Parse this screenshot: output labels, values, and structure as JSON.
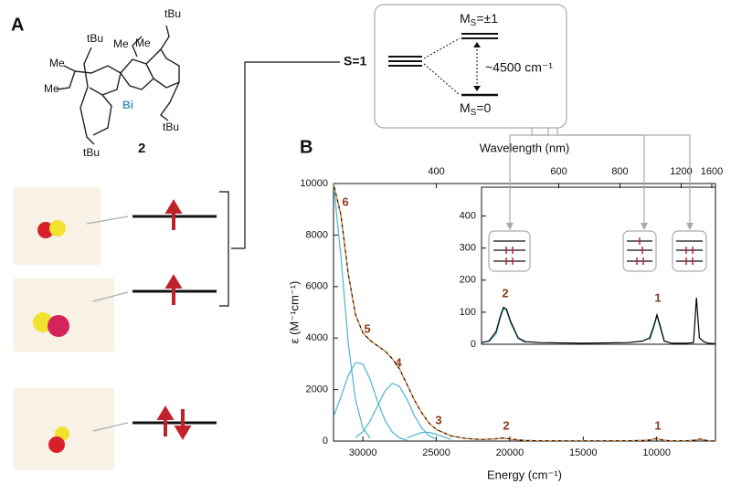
{
  "panel_a": {
    "label": "A",
    "compound": "2",
    "bi": "Bi",
    "me": [
      "Me",
      "Me",
      "Me",
      "Me"
    ],
    "tbu": [
      "tBu",
      "tBu",
      "tBu",
      "tBu"
    ],
    "spin": "S=1",
    "levels": {
      "upper": {
        "m": "M",
        "sub": "S",
        "rest": "=±1"
      },
      "gap": "~4500 cm⁻¹",
      "lower": {
        "m": "M",
        "sub": "S",
        "rest": "=0"
      }
    }
  },
  "panel_b_label": "B",
  "chart_data": [
    {
      "type": "line",
      "xlabel": "Energy (cm⁻¹)",
      "ylabel": "ε (M⁻¹cm⁻¹)",
      "x2label": "Wavelength (nm)",
      "x": [
        32000,
        31500,
        31000,
        30500,
        30000,
        29500,
        29000,
        28500,
        28000,
        27500,
        27000,
        26500,
        26000,
        25500,
        25000,
        24000,
        23000,
        22000,
        21000,
        20500,
        20000,
        19000,
        18000,
        15000,
        12000,
        11000,
        10500,
        10000,
        9500,
        9000,
        8000,
        7500,
        7000,
        6500,
        6000
      ],
      "series": [
        {
          "color": "#4bb3cf",
          "style": "solid",
          "values": [
            10000,
            7200,
            3800,
            1600,
            500,
            120,
            null,
            null,
            null,
            null,
            null,
            null,
            null,
            null,
            null,
            null,
            null,
            null,
            null,
            null,
            null,
            null,
            null,
            null,
            null,
            null,
            null,
            null,
            null,
            null,
            null,
            null,
            null,
            null,
            null
          ]
        },
        {
          "color": "#4bb3cf",
          "style": "solid",
          "values": [
            940,
            1710,
            2540,
            3050,
            2990,
            2380,
            1540,
            810,
            350,
            120,
            35,
            null,
            null,
            null,
            null,
            null,
            null,
            null,
            null,
            null,
            null,
            null,
            null,
            null,
            null,
            null,
            null,
            null,
            null,
            null,
            null,
            null,
            null,
            null,
            null
          ]
        },
        {
          "color": "#4bb3cf",
          "style": "solid",
          "values": [
            null,
            null,
            null,
            140,
            365,
            780,
            1370,
            1940,
            2245,
            2120,
            1620,
            1000,
            510,
            210,
            70,
            null,
            null,
            null,
            null,
            null,
            null,
            null,
            null,
            null,
            null,
            null,
            null,
            null,
            null,
            null,
            null,
            null,
            null,
            null,
            null
          ]
        },
        {
          "color": "#4bb3cf",
          "style": "solid",
          "values": [
            null,
            null,
            null,
            null,
            null,
            null,
            null,
            null,
            null,
            null,
            123,
            235,
            330,
            340,
            260,
            60,
            null,
            null,
            null,
            null,
            null,
            null,
            null,
            null,
            null,
            null,
            null,
            null,
            null,
            null,
            null,
            null,
            null,
            null,
            null
          ]
        },
        {
          "color": "#000000",
          "style": "solid",
          "values": [
            10000,
            8800,
            6500,
            4900,
            4200,
            3900,
            3700,
            3500,
            3200,
            2800,
            2200,
            1600,
            1100,
            700,
            450,
            200,
            100,
            60,
            80,
            120,
            80,
            20,
            10,
            5,
            10,
            20,
            40,
            100,
            30,
            10,
            10,
            30,
            80,
            10,
            5
          ]
        },
        {
          "color": "#e8943a",
          "style": "dashed",
          "values": [
            10000,
            8750,
            6480,
            4920,
            4190,
            3880,
            3710,
            3490,
            3200,
            2790,
            2210,
            1600,
            1100,
            700,
            440,
            200,
            100,
            60,
            80,
            115,
            80,
            20,
            10,
            5,
            10,
            20,
            40,
            95,
            30,
            10,
            10,
            30,
            70,
            10,
            5
          ]
        }
      ],
      "xlim": [
        32000,
        6000
      ],
      "xticks": [
        30000,
        25000,
        20000,
        15000,
        10000
      ],
      "ylim": [
        0,
        10000
      ],
      "yticks": [
        0,
        2000,
        4000,
        6000,
        8000,
        10000
      ],
      "x2ticks": [
        400,
        600,
        800,
        1200,
        1600
      ],
      "annotations": [
        "6",
        "5",
        "4",
        "3",
        "2",
        "1"
      ]
    },
    {
      "type": "line",
      "x": [
        22000,
        21500,
        21000,
        20700,
        20500,
        20300,
        20000,
        19500,
        19000,
        18000,
        15000,
        12000,
        11000,
        10500,
        10200,
        10000,
        9800,
        9500,
        9000,
        8500,
        8000,
        7500,
        7300,
        7100,
        6800,
        6500,
        6000
      ],
      "series": [
        {
          "color": "#4bb3cf",
          "style": "solid",
          "values": [
            null,
            8,
            32,
            85,
            110,
            105,
            65,
            18,
            5,
            null,
            null,
            null,
            null,
            null,
            null,
            null,
            null,
            null,
            null,
            null,
            null,
            null,
            null,
            null,
            null,
            null,
            null
          ]
        },
        {
          "color": "#4bb3cf",
          "style": "solid",
          "values": [
            null,
            null,
            null,
            null,
            null,
            null,
            null,
            null,
            null,
            null,
            null,
            null,
            null,
            12,
            55,
            88,
            55,
            8,
            null,
            null,
            null,
            null,
            null,
            null,
            null,
            null,
            null
          ]
        },
        {
          "color": "#000000",
          "style": "solid",
          "values": [
            5,
            10,
            40,
            90,
            115,
            110,
            70,
            20,
            8,
            5,
            3,
            5,
            10,
            20,
            60,
            92,
            60,
            10,
            3,
            3,
            3,
            5,
            145,
            20,
            8,
            3,
            2
          ]
        }
      ],
      "xlim": [
        22000,
        6000
      ],
      "ylim": [
        0,
        490
      ],
      "yticks": [
        0,
        100,
        200,
        300,
        400
      ],
      "annotations": [
        "2",
        "1"
      ]
    }
  ]
}
